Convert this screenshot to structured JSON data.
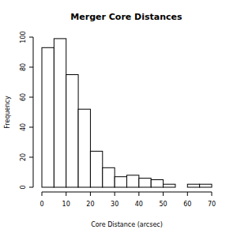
{
  "chart_data": {
    "type": "histogram",
    "title": "Merger Core Distances",
    "x_label": "Core Distance (arcsec)",
    "y_label": "Frequency",
    "bins": [
      0,
      5,
      10,
      15,
      20,
      25,
      30,
      35,
      40,
      45,
      50,
      55,
      60,
      65,
      70
    ],
    "values": [
      93,
      99,
      75,
      52,
      24,
      13,
      7,
      8,
      6,
      5,
      2,
      0,
      2,
      2
    ],
    "color": "#ffffff",
    "xlim": [
      0,
      70
    ],
    "xticks": [
      0,
      10,
      20,
      30,
      40,
      50,
      60,
      70
    ],
    "ylim": [
      0,
      100
    ],
    "yticks": [
      0,
      20,
      40,
      60,
      80,
      100
    ],
    "grid": false
  }
}
